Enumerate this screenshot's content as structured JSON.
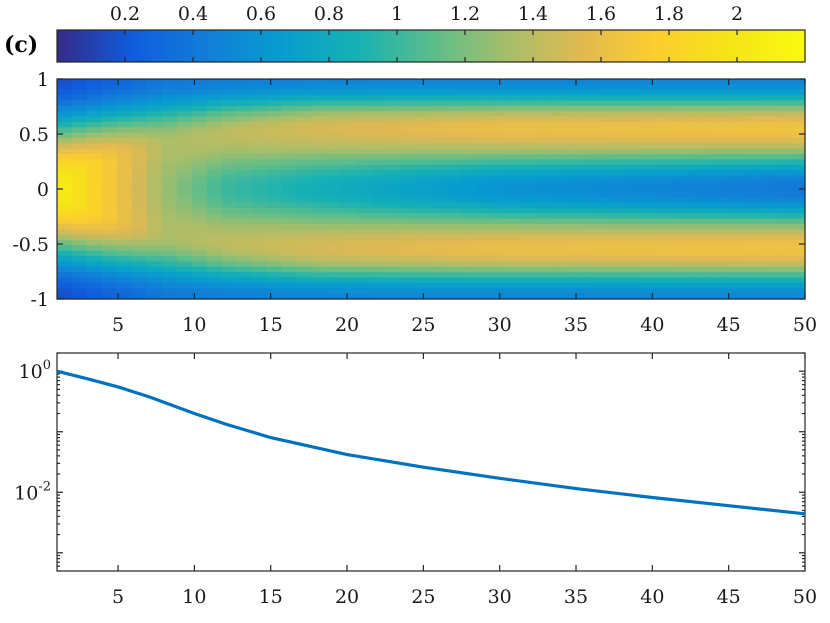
{
  "panel_label": "(c)",
  "colors": {
    "line": "#0072BD",
    "axis": "#262626"
  },
  "chart_data": [
    {
      "type": "colorbar",
      "colormap": "parula",
      "range": [
        0,
        2.2
      ],
      "ticks": [
        0.2,
        0.4,
        0.6,
        0.8,
        1,
        1.2,
        1.4,
        1.6,
        1.8,
        2
      ],
      "tick_labels": [
        "0.2",
        "0.4",
        "0.6",
        "0.8",
        "1",
        "1.2",
        "1.4",
        "1.6",
        "1.8",
        "2"
      ],
      "placement": "top, horizontal"
    },
    {
      "type": "heatmap",
      "xlim": [
        1,
        50
      ],
      "ylim": [
        -1,
        1
      ],
      "x_ticks": [
        5,
        10,
        15,
        20,
        25,
        30,
        35,
        40,
        45,
        50
      ],
      "x_tick_labels": [
        "5",
        "10",
        "15",
        "20",
        "25",
        "30",
        "35",
        "40",
        "45",
        "50"
      ],
      "y_ticks": [
        -1,
        -0.5,
        0,
        0.5,
        1
      ],
      "y_tick_labels": [
        "-1",
        "-0.5",
        "0",
        "0.5",
        "1"
      ],
      "x_resolution": 50,
      "y_resolution": 41,
      "color_range": [
        0,
        2.2
      ],
      "profile_description_points": {
        "x": [
          1,
          4,
          8,
          12,
          18,
          30,
          50
        ],
        "center_value": [
          2.1,
          1.75,
          1.3,
          1.0,
          0.85,
          0.6,
          0.4
        ],
        "band_position_abs_y": [
          0.0,
          0.2,
          0.4,
          0.5,
          0.55,
          0.55,
          0.55
        ],
        "band_value": [
          2.1,
          1.75,
          1.35,
          1.4,
          1.5,
          1.6,
          1.65
        ],
        "edge_value": [
          0.15,
          0.25,
          0.4,
          0.45,
          0.5,
          0.5,
          0.5
        ]
      }
    },
    {
      "type": "line",
      "xlim": [
        1,
        50
      ],
      "y_scale": "log",
      "ylim": [
        0.0005,
        2
      ],
      "x_ticks": [
        5,
        10,
        15,
        20,
        25,
        30,
        35,
        40,
        45,
        50
      ],
      "x_tick_labels": [
        "5",
        "10",
        "15",
        "20",
        "25",
        "30",
        "35",
        "40",
        "45",
        "50"
      ],
      "y_ticks": [
        {
          "value": 1,
          "base": "10",
          "exp": "0"
        },
        {
          "value": 0.01,
          "base": "10",
          "exp": "-2"
        }
      ],
      "series": [
        {
          "x": [
            1,
            3,
            5,
            7,
            10,
            12,
            15,
            20,
            25,
            30,
            35,
            40,
            45,
            50
          ],
          "y": [
            1.0,
            0.75,
            0.55,
            0.38,
            0.2,
            0.135,
            0.08,
            0.042,
            0.026,
            0.017,
            0.0115,
            0.0082,
            0.006,
            0.0044
          ]
        }
      ]
    }
  ]
}
